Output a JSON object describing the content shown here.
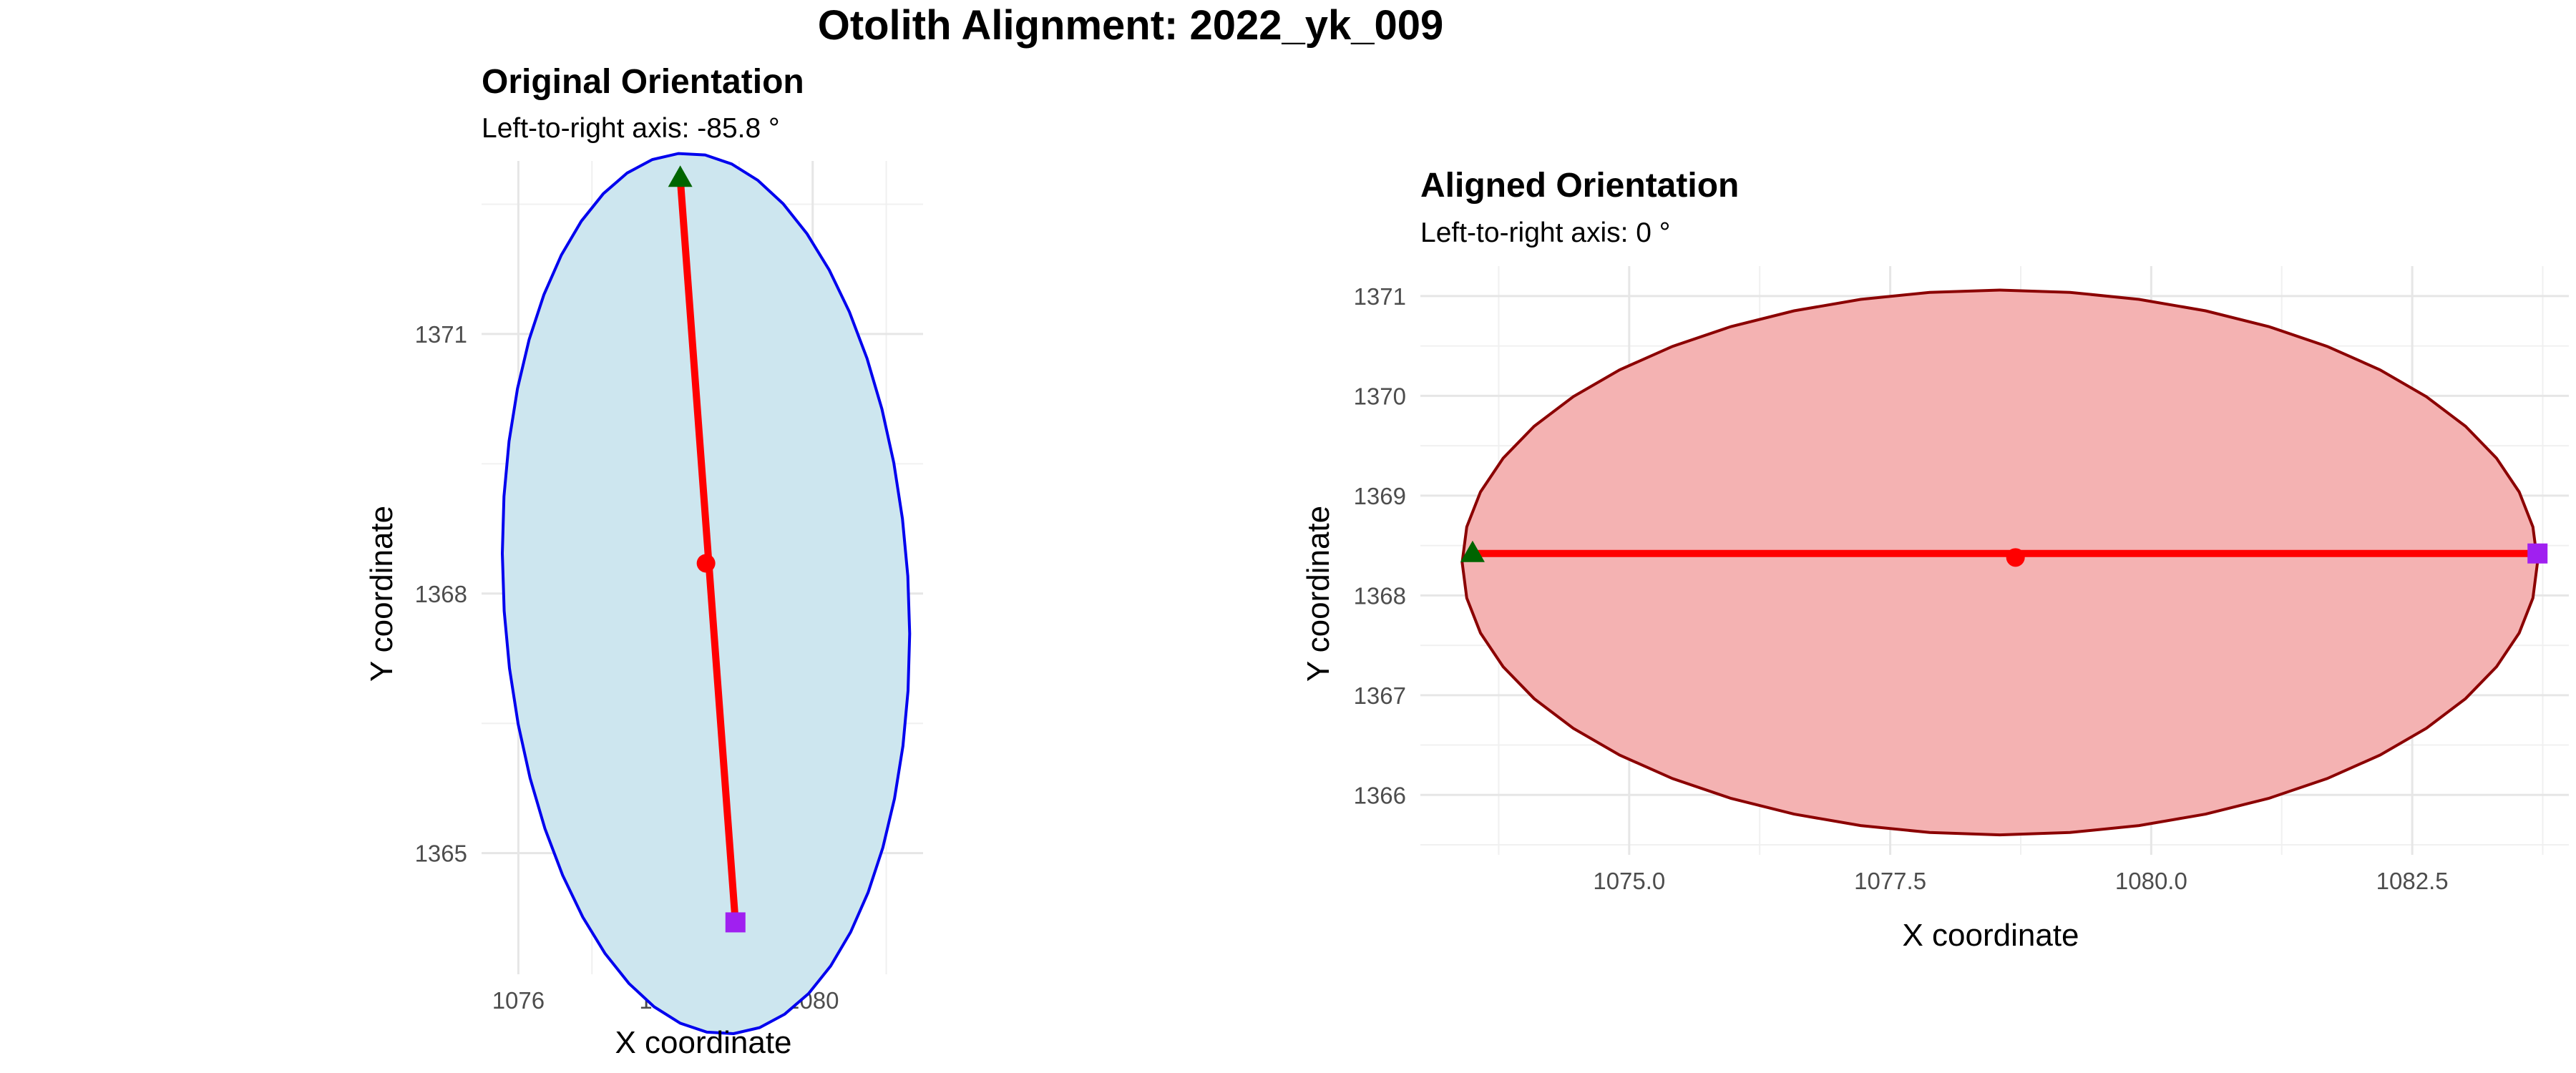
{
  "figure_title": "Otolith Alignment: 2022_yk_009",
  "colors": {
    "grid_major": "#e6e6e6",
    "grid_minor": "#f0f0f0",
    "axis_line": "#ff0000",
    "center": "#ff0000",
    "left_marker": "#006400",
    "right_marker": "#a020f0"
  },
  "chart_data": [
    {
      "type": "scatter",
      "title": "Original Orientation",
      "subtitle": "Left-to-right axis: -85.8 °",
      "xlabel": "X coordinate",
      "ylabel": "Y coordinate",
      "xlim": [
        1075.5,
        1081.5
      ],
      "ylim": [
        1363.6,
        1373.0
      ],
      "x_ticks": [
        1076,
        1078,
        1080
      ],
      "x_tick_labels": [
        "1076",
        "1078",
        "1080"
      ],
      "y_ticks": [
        1365,
        1368,
        1371
      ],
      "y_tick_labels": [
        "1365",
        "1368",
        "1371"
      ],
      "grid": true,
      "outline": {
        "center": [
          1078.55,
          1368.0
        ],
        "semi_major": 5.1,
        "semi_minor": 2.75,
        "angle_deg": -85.8,
        "fill": "#cde6ef",
        "stroke": "#0000ee"
      },
      "axis_segment": {
        "start": [
          1078.2,
          1372.8
        ],
        "end": [
          1078.95,
          1364.2
        ]
      },
      "center_point": [
        1078.55,
        1368.35
      ],
      "left_marker": {
        "shape": "triangle",
        "point": [
          1078.2,
          1372.8
        ]
      },
      "right_marker": {
        "shape": "square",
        "point": [
          1078.95,
          1364.2
        ]
      }
    },
    {
      "type": "scatter",
      "title": "Aligned Orientation",
      "subtitle": "Left-to-right axis: 0 °",
      "xlabel": "X coordinate",
      "ylabel": "Y coordinate",
      "xlim": [
        1073.0,
        1084.0
      ],
      "ylim": [
        1365.4,
        1371.3
      ],
      "x_ticks": [
        1075.0,
        1077.5,
        1080.0,
        1082.5
      ],
      "x_tick_labels": [
        "1075.0",
        "1077.5",
        "1080.0",
        "1082.5"
      ],
      "y_ticks": [
        1366,
        1367,
        1368,
        1369,
        1370,
        1371
      ],
      "y_tick_labels": [
        "1366",
        "1367",
        "1368",
        "1369",
        "1370",
        "1371"
      ],
      "grid": true,
      "outline": {
        "center": [
          1078.55,
          1368.33
        ],
        "semi_major": 5.15,
        "semi_minor": 2.73,
        "angle_deg": 0,
        "fill": "#f4b2b2",
        "stroke": "#8b0000"
      },
      "axis_segment": {
        "start": [
          1073.5,
          1368.42
        ],
        "end": [
          1083.7,
          1368.42
        ]
      },
      "center_point": [
        1078.7,
        1368.38
      ],
      "left_marker": {
        "shape": "triangle",
        "point": [
          1073.5,
          1368.42
        ]
      },
      "right_marker": {
        "shape": "square",
        "point": [
          1083.7,
          1368.42
        ]
      }
    }
  ]
}
